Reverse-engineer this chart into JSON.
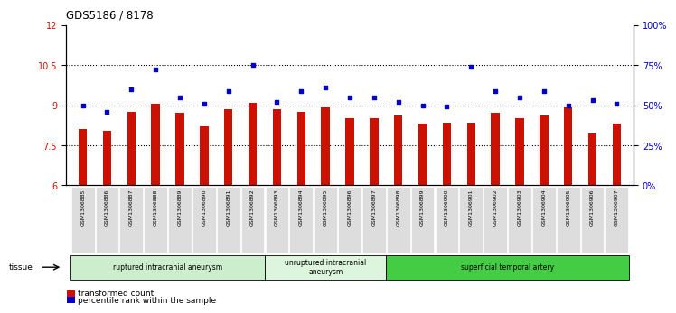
{
  "title": "GDS5186 / 8178",
  "samples": [
    "GSM1306885",
    "GSM1306886",
    "GSM1306887",
    "GSM1306888",
    "GSM1306889",
    "GSM1306890",
    "GSM1306891",
    "GSM1306892",
    "GSM1306893",
    "GSM1306894",
    "GSM1306895",
    "GSM1306896",
    "GSM1306897",
    "GSM1306898",
    "GSM1306899",
    "GSM1306900",
    "GSM1306901",
    "GSM1306902",
    "GSM1306903",
    "GSM1306904",
    "GSM1306905",
    "GSM1306906",
    "GSM1306907"
  ],
  "bar_values": [
    8.1,
    8.05,
    8.75,
    9.05,
    8.7,
    8.2,
    8.85,
    9.1,
    8.85,
    8.75,
    8.9,
    8.5,
    8.5,
    8.6,
    8.3,
    8.35,
    8.35,
    8.7,
    8.5,
    8.6,
    8.9,
    7.95,
    8.3
  ],
  "dot_values_pct": [
    50,
    46,
    60,
    72,
    55,
    51,
    59,
    75,
    52,
    59,
    61,
    55,
    55,
    52,
    50,
    49,
    74,
    59,
    55,
    59,
    50,
    53,
    51
  ],
  "bar_color": "#cc1100",
  "dot_color": "#0000cc",
  "ylim_left": [
    6,
    12
  ],
  "yticks_left": [
    6,
    7.5,
    9.0,
    10.5,
    12
  ],
  "ylim_right": [
    0,
    100
  ],
  "yticks_right": [
    0,
    25,
    50,
    75,
    100
  ],
  "ytick_labels_right": [
    "0%",
    "25%",
    "50%",
    "75%",
    "100%"
  ],
  "hlines": [
    7.5,
    9.0,
    10.5
  ],
  "groups": [
    {
      "label": "ruptured intracranial aneurysm",
      "start": 0,
      "end": 8,
      "color": "#cceecc"
    },
    {
      "label": "unruptured intracranial\naneurysm",
      "start": 8,
      "end": 13,
      "color": "#ddf5dd"
    },
    {
      "label": "superficial temporal artery",
      "start": 13,
      "end": 23,
      "color": "#44cc44"
    }
  ],
  "tissue_label": "tissue",
  "legend_bar_label": "transformed count",
  "legend_dot_label": "percentile rank within the sample",
  "plot_bg_color": "#ffffff",
  "cell_bg_color": "#dddddd",
  "grid_linestyle": "dotted"
}
